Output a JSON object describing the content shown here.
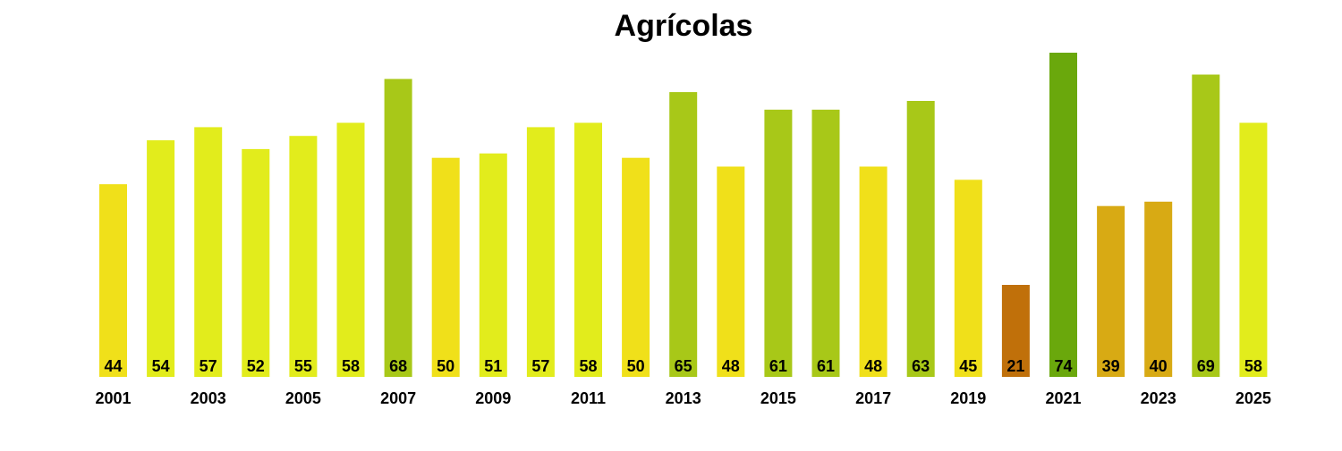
{
  "chart_data": {
    "type": "bar",
    "title": "Agrícolas",
    "xlabel": "",
    "ylabel": "",
    "grid": false,
    "legend": "none",
    "categories": [
      "2001",
      "2002",
      "2003",
      "2004",
      "2005",
      "2006",
      "2007",
      "2008",
      "2009",
      "2010",
      "2011",
      "2012",
      "2013",
      "2014",
      "2015",
      "2016",
      "2017",
      "2018",
      "2019",
      "2020",
      "2021",
      "2022",
      "2023",
      "2024",
      "2025"
    ],
    "x_tick_labels": [
      "2001",
      "",
      "2003",
      "",
      "2005",
      "",
      "2007",
      "",
      "2009",
      "",
      "2011",
      "",
      "2013",
      "",
      "2015",
      "",
      "2017",
      "",
      "2019",
      "",
      "2021",
      "",
      "2023",
      "",
      "2025"
    ],
    "values": [
      44,
      54,
      57,
      52,
      55,
      58,
      68,
      50,
      51,
      57,
      58,
      50,
      65,
      48,
      61,
      61,
      48,
      63,
      45,
      21,
      74,
      39,
      40,
      69,
      58
    ],
    "data_labels": [
      "44",
      "54",
      "57",
      "52",
      "55",
      "58",
      "68",
      "50",
      "51",
      "57",
      "58",
      "50",
      "65",
      "48",
      "61",
      "61",
      "48",
      "63",
      "45",
      "21",
      "74",
      "39",
      "40",
      "69",
      "58"
    ],
    "colors": [
      "#f0e01a",
      "#e2ec1c",
      "#e2ec1c",
      "#e2ec1c",
      "#e2ec1c",
      "#e2ec1c",
      "#a8c818",
      "#f0e01a",
      "#e2ec1c",
      "#e2ec1c",
      "#e2ec1c",
      "#f0e01a",
      "#a8c818",
      "#f0e01a",
      "#a8c818",
      "#a8c818",
      "#f0e01a",
      "#a8c818",
      "#f0e01a",
      "#c0700a",
      "#6aa80c",
      "#d8aa14",
      "#d8aa14",
      "#a8c818",
      "#e2ec1c"
    ],
    "ylim": [
      0,
      74
    ]
  }
}
